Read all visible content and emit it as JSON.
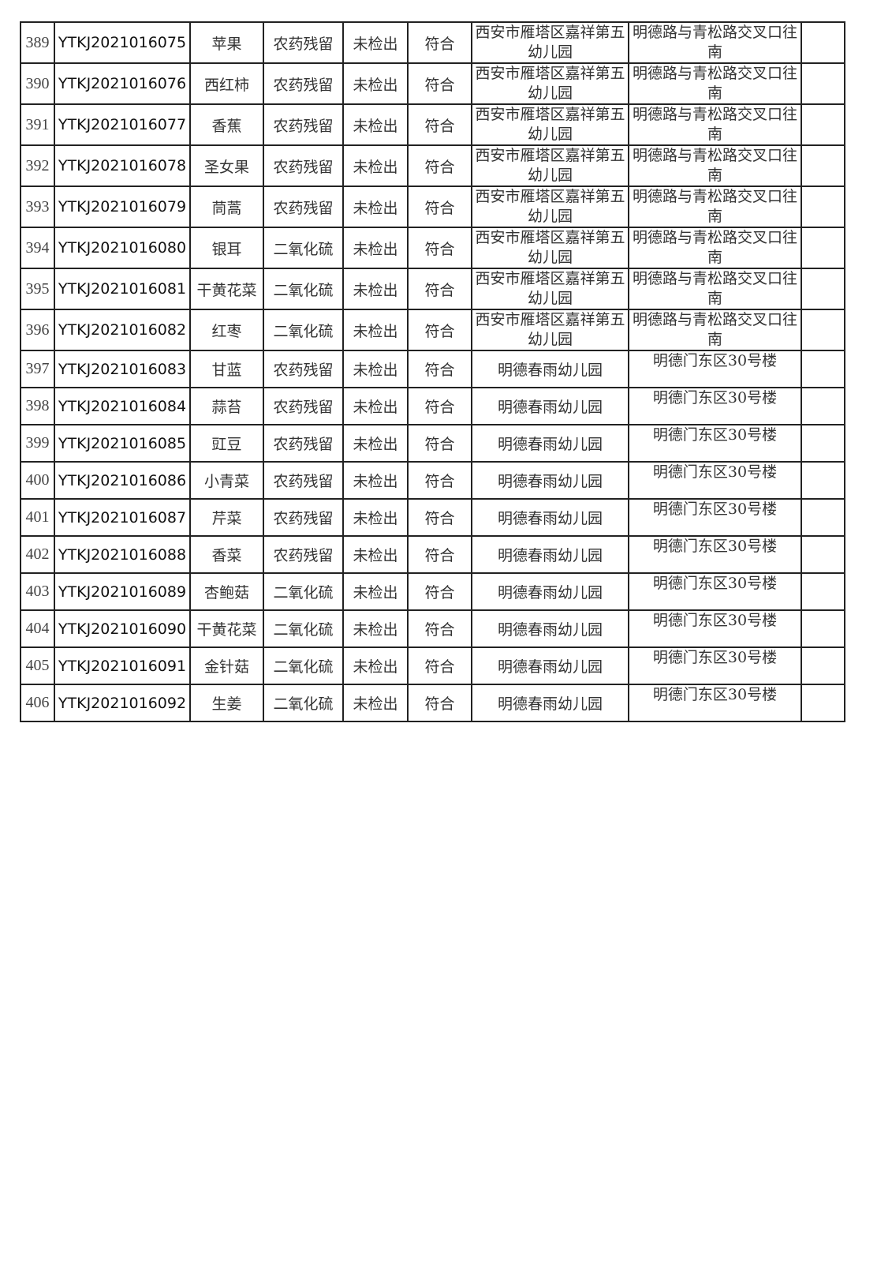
{
  "table": {
    "rows": [
      [
        "389",
        "YTKJ2021016075",
        "苹果",
        "农药残留",
        "未检出",
        "符合",
        "西安市雁塔区嘉祥第五幼儿园",
        "明德路与青松路交叉口往南",
        ""
      ],
      [
        "390",
        "YTKJ2021016076",
        "西红柿",
        "农药残留",
        "未检出",
        "符合",
        "西安市雁塔区嘉祥第五幼儿园",
        "明德路与青松路交叉口往南",
        ""
      ],
      [
        "391",
        "YTKJ2021016077",
        "香蕉",
        "农药残留",
        "未检出",
        "符合",
        "西安市雁塔区嘉祥第五幼儿园",
        "明德路与青松路交叉口往南",
        ""
      ],
      [
        "392",
        "YTKJ2021016078",
        "圣女果",
        "农药残留",
        "未检出",
        "符合",
        "西安市雁塔区嘉祥第五幼儿园",
        "明德路与青松路交叉口往南",
        ""
      ],
      [
        "393",
        "YTKJ2021016079",
        "茼蒿",
        "农药残留",
        "未检出",
        "符合",
        "西安市雁塔区嘉祥第五幼儿园",
        "明德路与青松路交叉口往南",
        ""
      ],
      [
        "394",
        "YTKJ2021016080",
        "银耳",
        "二氧化硫",
        "未检出",
        "符合",
        "西安市雁塔区嘉祥第五幼儿园",
        "明德路与青松路交叉口往南",
        ""
      ],
      [
        "395",
        "YTKJ2021016081",
        "干黄花菜",
        "二氧化硫",
        "未检出",
        "符合",
        "西安市雁塔区嘉祥第五幼儿园",
        "明德路与青松路交叉口往南",
        ""
      ],
      [
        "396",
        "YTKJ2021016082",
        "红枣",
        "二氧化硫",
        "未检出",
        "符合",
        "西安市雁塔区嘉祥第五幼儿园",
        "明德路与青松路交叉口往南",
        ""
      ],
      [
        "397",
        "YTKJ2021016083",
        "甘蓝",
        "农药残留",
        "未检出",
        "符合",
        "明德春雨幼儿园",
        "明德门东区30号楼",
        ""
      ],
      [
        "398",
        "YTKJ2021016084",
        "蒜苔",
        "农药残留",
        "未检出",
        "符合",
        "明德春雨幼儿园",
        "明德门东区30号楼",
        ""
      ],
      [
        "399",
        "YTKJ2021016085",
        "豇豆",
        "农药残留",
        "未检出",
        "符合",
        "明德春雨幼儿园",
        "明德门东区30号楼",
        ""
      ],
      [
        "400",
        "YTKJ2021016086",
        "小青菜",
        "农药残留",
        "未检出",
        "符合",
        "明德春雨幼儿园",
        "明德门东区30号楼",
        ""
      ],
      [
        "401",
        "YTKJ2021016087",
        "芹菜",
        "农药残留",
        "未检出",
        "符合",
        "明德春雨幼儿园",
        "明德门东区30号楼",
        ""
      ],
      [
        "402",
        "YTKJ2021016088",
        "香菜",
        "农药残留",
        "未检出",
        "符合",
        "明德春雨幼儿园",
        "明德门东区30号楼",
        ""
      ],
      [
        "403",
        "YTKJ2021016089",
        "杏鲍菇",
        "二氧化硫",
        "未检出",
        "符合",
        "明德春雨幼儿园",
        "明德门东区30号楼",
        ""
      ],
      [
        "404",
        "YTKJ2021016090",
        "干黄花菜",
        "二氧化硫",
        "未检出",
        "符合",
        "明德春雨幼儿园",
        "明德门东区30号楼",
        ""
      ],
      [
        "405",
        "YTKJ2021016091",
        "金针菇",
        "二氧化硫",
        "未检出",
        "符合",
        "明德春雨幼儿园",
        "明德门东区30号楼",
        ""
      ],
      [
        "406",
        "YTKJ2021016092",
        "生姜",
        "二氧化硫",
        "未检出",
        "符合",
        "明德春雨幼儿园",
        "明德门东区30号楼",
        ""
      ]
    ]
  }
}
